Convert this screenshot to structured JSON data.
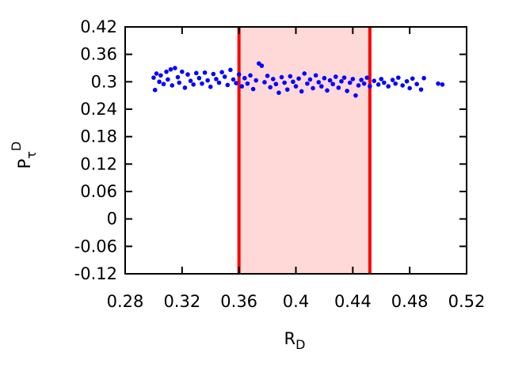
{
  "chart_data": {
    "type": "scatter",
    "xlabel": {
      "base": "R",
      "sub": "D"
    },
    "ylabel": {
      "base": "P",
      "sub": "τ",
      "sup": "D"
    },
    "xlim": [
      0.28,
      0.52
    ],
    "xticks": [
      0.28,
      0.32,
      0.36,
      0.4,
      0.44,
      0.48,
      0.52
    ],
    "ylim": [
      -0.12,
      0.42
    ],
    "yticks": [
      -0.12,
      -0.06,
      0,
      0.06,
      0.12,
      0.18,
      0.24,
      0.3,
      0.36,
      0.42
    ],
    "grid": false,
    "shaded_region": {
      "x": [
        0.36,
        0.452
      ],
      "fill": "#ffd8d8",
      "edge_color": "#ff0000"
    },
    "series": [
      {
        "color": "#0000ff",
        "x": [
          0.3,
          0.301,
          0.302,
          0.304,
          0.305,
          0.307,
          0.309,
          0.31,
          0.312,
          0.313,
          0.315,
          0.317,
          0.318,
          0.32,
          0.322,
          0.324,
          0.326,
          0.328,
          0.33,
          0.332,
          0.334,
          0.336,
          0.338,
          0.34,
          0.342,
          0.344,
          0.346,
          0.348,
          0.35,
          0.352,
          0.354,
          0.356,
          0.358,
          0.36,
          0.362,
          0.364,
          0.366,
          0.368,
          0.37,
          0.372,
          0.374,
          0.376,
          0.378,
          0.38,
          0.382,
          0.384,
          0.386,
          0.388,
          0.39,
          0.392,
          0.394,
          0.396,
          0.398,
          0.4,
          0.402,
          0.404,
          0.406,
          0.408,
          0.41,
          0.412,
          0.414,
          0.416,
          0.418,
          0.42,
          0.422,
          0.424,
          0.426,
          0.428,
          0.43,
          0.432,
          0.434,
          0.436,
          0.438,
          0.44,
          0.442,
          0.444,
          0.446,
          0.448,
          0.45,
          0.452,
          0.455,
          0.458,
          0.46,
          0.462,
          0.465,
          0.468,
          0.47,
          0.472,
          0.475,
          0.478,
          0.48,
          0.482,
          0.485,
          0.488,
          0.49,
          0.5,
          0.503
        ],
        "values": [
          0.309,
          0.282,
          0.318,
          0.3,
          0.314,
          0.295,
          0.322,
          0.305,
          0.327,
          0.292,
          0.33,
          0.31,
          0.298,
          0.322,
          0.287,
          0.316,
          0.302,
          0.294,
          0.319,
          0.308,
          0.296,
          0.32,
          0.303,
          0.289,
          0.317,
          0.306,
          0.298,
          0.321,
          0.311,
          0.293,
          0.326,
          0.305,
          0.297,
          0.316,
          0.29,
          0.308,
          0.296,
          0.314,
          0.284,
          0.303,
          0.34,
          0.335,
          0.299,
          0.313,
          0.288,
          0.306,
          0.295,
          0.276,
          0.31,
          0.298,
          0.283,
          0.312,
          0.3,
          0.29,
          0.307,
          0.279,
          0.318,
          0.296,
          0.305,
          0.286,
          0.314,
          0.299,
          0.29,
          0.308,
          0.281,
          0.303,
          0.295,
          0.311,
          0.287,
          0.301,
          0.309,
          0.28,
          0.298,
          0.306,
          0.27,
          0.292,
          0.304,
          0.296,
          0.309,
          0.29,
          0.302,
          0.294,
          0.306,
          0.298,
          0.29,
          0.304,
          0.296,
          0.309,
          0.292,
          0.301,
          0.286,
          0.307,
          0.295,
          0.283,
          0.308,
          0.296,
          0.294
        ]
      }
    ]
  }
}
